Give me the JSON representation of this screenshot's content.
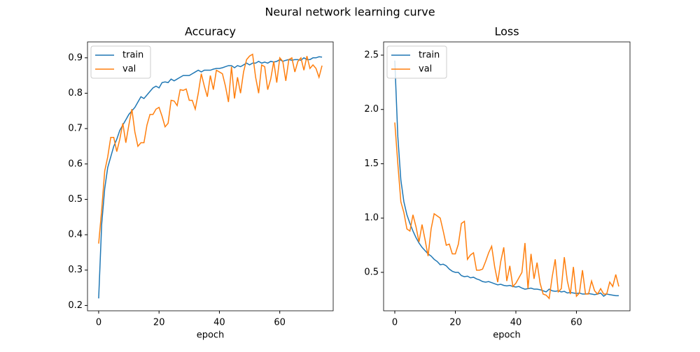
{
  "title": "Neural network learning curve",
  "chart_data": [
    {
      "type": "line",
      "title": "Accuracy",
      "xlabel": "epoch",
      "x": [
        0,
        1,
        2,
        3,
        4,
        5,
        6,
        7,
        8,
        9,
        10,
        11,
        12,
        13,
        14,
        15,
        16,
        17,
        18,
        19,
        20,
        21,
        22,
        23,
        24,
        25,
        26,
        27,
        28,
        29,
        30,
        31,
        32,
        33,
        34,
        35,
        36,
        37,
        38,
        39,
        40,
        41,
        42,
        43,
        44,
        45,
        46,
        47,
        48,
        49,
        50,
        51,
        52,
        53,
        54,
        55,
        56,
        57,
        58,
        59,
        60,
        61,
        62,
        63,
        64,
        65,
        66,
        67,
        68,
        69,
        70,
        71,
        72,
        73,
        74
      ],
      "series": [
        {
          "name": "train",
          "color": "#1f77b4",
          "values": [
            0.22,
            0.43,
            0.53,
            0.59,
            0.62,
            0.65,
            0.67,
            0.695,
            0.71,
            0.725,
            0.74,
            0.75,
            0.76,
            0.775,
            0.79,
            0.785,
            0.795,
            0.805,
            0.815,
            0.82,
            0.815,
            0.83,
            0.832,
            0.83,
            0.84,
            0.835,
            0.84,
            0.845,
            0.85,
            0.85,
            0.85,
            0.855,
            0.86,
            0.865,
            0.86,
            0.865,
            0.865,
            0.865,
            0.868,
            0.87,
            0.87,
            0.872,
            0.875,
            0.878,
            0.878,
            0.872,
            0.878,
            0.875,
            0.88,
            0.885,
            0.88,
            0.885,
            0.885,
            0.89,
            0.885,
            0.888,
            0.885,
            0.89,
            0.888,
            0.89,
            0.895,
            0.89,
            0.893,
            0.895,
            0.893,
            0.895,
            0.895,
            0.893,
            0.9,
            0.895,
            0.895,
            0.9,
            0.9,
            0.903,
            0.902
          ]
        },
        {
          "name": "val",
          "color": "#ff7f0e",
          "values": [
            0.375,
            0.47,
            0.58,
            0.62,
            0.675,
            0.675,
            0.635,
            0.67,
            0.715,
            0.66,
            0.71,
            0.755,
            0.69,
            0.65,
            0.66,
            0.66,
            0.71,
            0.74,
            0.74,
            0.755,
            0.76,
            0.735,
            0.705,
            0.715,
            0.78,
            0.778,
            0.765,
            0.81,
            0.808,
            0.812,
            0.78,
            0.78,
            0.755,
            0.8,
            0.855,
            0.82,
            0.79,
            0.85,
            0.81,
            0.865,
            0.86,
            0.855,
            0.82,
            0.775,
            0.875,
            0.785,
            0.845,
            0.8,
            0.86,
            0.895,
            0.905,
            0.91,
            0.845,
            0.8,
            0.88,
            0.875,
            0.81,
            0.84,
            0.89,
            0.83,
            0.9,
            0.89,
            0.835,
            0.895,
            0.9,
            0.86,
            0.89,
            0.9,
            0.865,
            0.905,
            0.87,
            0.88,
            0.87,
            0.845,
            0.878
          ]
        }
      ],
      "xlim": [
        -3.7,
        77.7
      ],
      "xticks": [
        0,
        20,
        40,
        60
      ],
      "ylim": [
        0.185,
        0.945
      ],
      "yticks": [
        0.2,
        0.3,
        0.4,
        0.5,
        0.6,
        0.7,
        0.8,
        0.9
      ],
      "legend": "upper left"
    },
    {
      "type": "line",
      "title": "Loss",
      "xlabel": "epoch",
      "x": [
        0,
        1,
        2,
        3,
        4,
        5,
        6,
        7,
        8,
        9,
        10,
        11,
        12,
        13,
        14,
        15,
        16,
        17,
        18,
        19,
        20,
        21,
        22,
        23,
        24,
        25,
        26,
        27,
        28,
        29,
        30,
        31,
        32,
        33,
        34,
        35,
        36,
        37,
        38,
        39,
        40,
        41,
        42,
        43,
        44,
        45,
        46,
        47,
        48,
        49,
        50,
        51,
        52,
        53,
        54,
        55,
        56,
        57,
        58,
        59,
        60,
        61,
        62,
        63,
        64,
        65,
        66,
        67,
        68,
        69,
        70,
        71,
        72,
        73,
        74
      ],
      "series": [
        {
          "name": "train",
          "color": "#1f77b4",
          "values": [
            2.45,
            1.75,
            1.35,
            1.15,
            1.03,
            0.95,
            0.88,
            0.82,
            0.77,
            0.73,
            0.7,
            0.67,
            0.65,
            0.62,
            0.6,
            0.57,
            0.575,
            0.56,
            0.53,
            0.51,
            0.5,
            0.5,
            0.47,
            0.46,
            0.465,
            0.45,
            0.455,
            0.44,
            0.43,
            0.415,
            0.41,
            0.415,
            0.405,
            0.395,
            0.385,
            0.39,
            0.38,
            0.375,
            0.38,
            0.37,
            0.365,
            0.37,
            0.355,
            0.345,
            0.35,
            0.355,
            0.345,
            0.345,
            0.34,
            0.33,
            0.32,
            0.345,
            0.33,
            0.325,
            0.33,
            0.32,
            0.325,
            0.31,
            0.315,
            0.31,
            0.305,
            0.31,
            0.3,
            0.3,
            0.305,
            0.3,
            0.295,
            0.3,
            0.31,
            0.28,
            0.3,
            0.295,
            0.29,
            0.285,
            0.285
          ]
        },
        {
          "name": "val",
          "color": "#ff7f0e",
          "values": [
            1.88,
            1.5,
            1.15,
            1.05,
            0.9,
            0.88,
            1.03,
            0.92,
            0.78,
            0.94,
            0.8,
            0.65,
            0.9,
            1.04,
            1.02,
            1.0,
            0.88,
            0.75,
            0.76,
            0.67,
            0.67,
            0.76,
            0.95,
            0.97,
            0.62,
            0.66,
            0.68,
            0.52,
            0.52,
            0.53,
            0.6,
            0.68,
            0.74,
            0.55,
            0.41,
            0.6,
            0.73,
            0.42,
            0.56,
            0.37,
            0.4,
            0.45,
            0.5,
            0.77,
            0.35,
            0.67,
            0.44,
            0.59,
            0.4,
            0.3,
            0.29,
            0.26,
            0.46,
            0.62,
            0.32,
            0.35,
            0.64,
            0.42,
            0.3,
            0.55,
            0.28,
            0.31,
            0.52,
            0.3,
            0.3,
            0.42,
            0.33,
            0.3,
            0.35,
            0.3,
            0.3,
            0.41,
            0.37,
            0.48,
            0.37
          ]
        }
      ],
      "xlim": [
        -3.7,
        77.7
      ],
      "xticks": [
        0,
        20,
        40,
        60
      ],
      "ylim": [
        0.146,
        2.622
      ],
      "yticks": [
        0.5,
        {
          "value": 1,
          "label": "1.0"
        },
        1.5,
        {
          "value": 2,
          "label": "2.0"
        },
        2.5
      ],
      "legend": "upper left"
    }
  ]
}
